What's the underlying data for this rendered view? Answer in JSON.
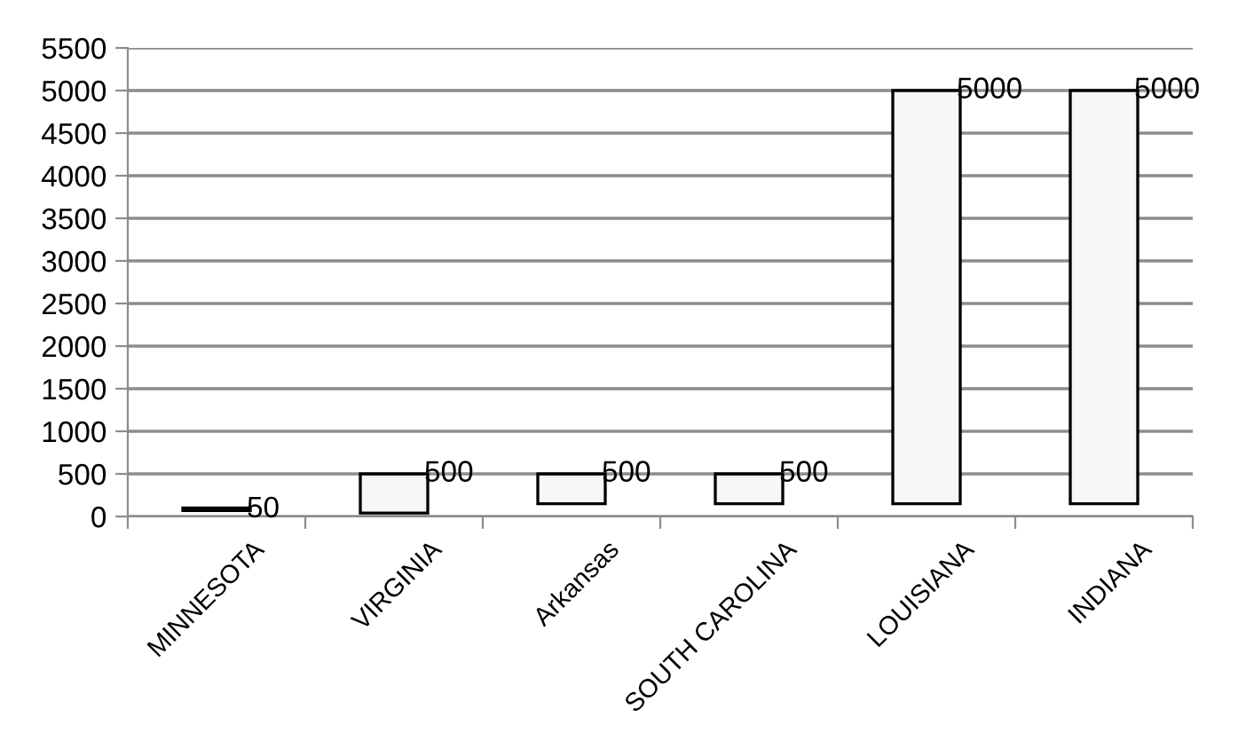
{
  "chart_data": {
    "type": "bar",
    "categories": [
      "MINNESOTA",
      "VIRGINIA",
      "Arkansas",
      "SOUTH CAROLINA",
      "LOUISIANA",
      "INDIANA"
    ],
    "base": [
      70,
      40,
      150,
      150,
      150,
      150
    ],
    "values": [
      30,
      460,
      350,
      350,
      4850,
      4850
    ],
    "annotations": [
      {
        "text": "50",
        "x": "MINNESOTA",
        "y": 80
      },
      {
        "text": "500",
        "x": "VIRGINIA",
        "y": 500
      },
      {
        "text": "500",
        "x": "Arkansas",
        "y": 500
      },
      {
        "text": "500",
        "x": "SOUTH CAROLINA",
        "y": 500
      },
      {
        "text": "5000",
        "x": "LOUISIANA",
        "y": 5000
      },
      {
        "text": "5000",
        "x": "INDIANA",
        "y": 5000
      }
    ],
    "color": "#f7f7f7",
    "ylim": [
      0,
      5500
    ],
    "yticks": [
      0,
      500,
      1000,
      1500,
      2000,
      2500,
      3000,
      3500,
      4000,
      4500,
      5000,
      5500
    ],
    "grid": "y",
    "legend": false
  }
}
